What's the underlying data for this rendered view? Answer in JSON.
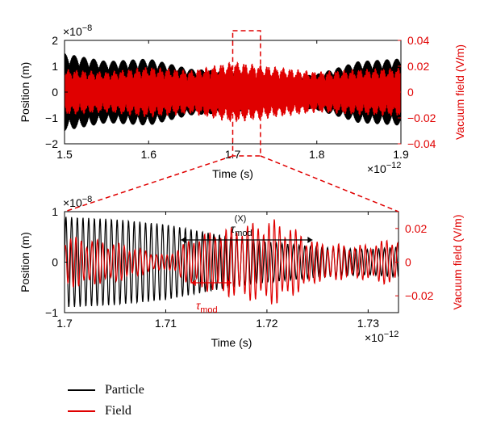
{
  "colors": {
    "particle": "#000000",
    "field": "#e00000"
  },
  "chart_data": [
    {
      "type": "line",
      "xlabel": "Time (s)",
      "ylabel": "Position (m)",
      "y2label": "Vacuum field (V/m)",
      "x_exponent": "×10",
      "x_exponent_power": "−12",
      "y_exponent": "×10",
      "y_exponent_power": "−8",
      "xlim": [
        1.5,
        1.9
      ],
      "ylim": [
        -2,
        2
      ],
      "y2lim": [
        -0.04,
        0.04
      ],
      "xticks": [
        "1.5",
        "1.6",
        "1.7",
        "1.8",
        "1.9"
      ],
      "yticks": [
        "2",
        "1",
        "0",
        "−1",
        "−2"
      ],
      "y2ticks": [
        "0.04",
        "0.02",
        "0",
        "−0.02",
        "−0.04"
      ],
      "grid": false,
      "series": [
        {
          "name": "Particle",
          "envelope_x": [
            1.5,
            1.55,
            1.6,
            1.65,
            1.7,
            1.75,
            1.8,
            1.85,
            1.9
          ],
          "envelope_amp": [
            1.5,
            1.2,
            1.3,
            0.9,
            0.8,
            0.5,
            0.7,
            1.2,
            1.3
          ]
        },
        {
          "name": "Field",
          "envelope_x": [
            1.5,
            1.55,
            1.6,
            1.65,
            1.7,
            1.75,
            1.8,
            1.85,
            1.9
          ],
          "envelope_amp": [
            0.018,
            0.016,
            0.02,
            0.017,
            0.024,
            0.02,
            0.016,
            0.018,
            0.019
          ]
        }
      ],
      "zoom_box": [
        1.7,
        1.733
      ]
    },
    {
      "type": "line",
      "xlabel": "Time (s)",
      "ylabel": "Position (m)",
      "y2label": "Vacuum field (V/m)",
      "x_exponent": "×10",
      "x_exponent_power": "−12",
      "y_exponent": "×10",
      "y_exponent_power": "−8",
      "xlim": [
        1.7,
        1.733
      ],
      "ylim": [
        -1,
        1
      ],
      "y2lim": [
        -0.03,
        0.03
      ],
      "xticks": [
        "1.7",
        "1.71",
        "1.72",
        "1.73"
      ],
      "yticks": [
        "1",
        "0",
        "−1"
      ],
      "y2ticks": [
        "0.02",
        "0",
        "−0.02"
      ],
      "grid": false,
      "series": [
        {
          "name": "Particle",
          "envelope_x": [
            1.7,
            1.705,
            1.71,
            1.715,
            1.72,
            1.725,
            1.73,
            1.733
          ],
          "envelope_amp": [
            0.9,
            0.85,
            0.75,
            0.55,
            0.4,
            0.3,
            0.25,
            0.3
          ]
        },
        {
          "name": "Field",
          "envelope_x": [
            1.7,
            1.705,
            1.71,
            1.713,
            1.717,
            1.721,
            1.725,
            1.729,
            1.733
          ],
          "envelope_amp": [
            0.016,
            0.012,
            0.004,
            0.016,
            0.022,
            0.026,
            0.012,
            0.01,
            0.015
          ]
        }
      ],
      "annotations": [
        {
          "label": "τ",
          "subscript": "mod",
          "superscript": "(X)",
          "x_start": 1.7115,
          "x_end": 1.7245,
          "color": "#000000"
        },
        {
          "label": "τ",
          "subscript": "mod",
          "x_start": 1.7125,
          "x_end": 1.7165,
          "color": "#e00000"
        }
      ]
    }
  ],
  "legend": [
    {
      "label": "Particle"
    },
    {
      "label": "Field"
    }
  ]
}
